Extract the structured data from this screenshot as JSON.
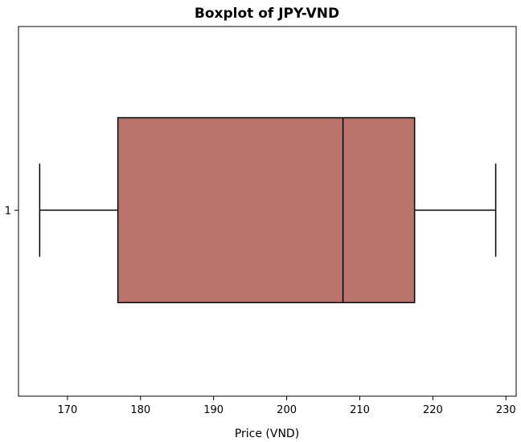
{
  "chart_data": {
    "type": "boxplot",
    "title": "Boxplot of JPY-VND",
    "xlabel": "Price (VND)",
    "ylabel": "",
    "orientation": "horizontal",
    "xlim": [
      163.3,
      231.4
    ],
    "x_ticks": [
      170,
      180,
      190,
      200,
      210,
      220,
      230
    ],
    "y_ticks": [
      1
    ],
    "grid": false,
    "legend": "none",
    "box_color": "#bb746c",
    "edge_color": "#000000",
    "series": [
      {
        "category": "1",
        "whisker_low": 166.2,
        "q1": 176.9,
        "median": 207.7,
        "q3": 217.5,
        "whisker_high": 228.6
      }
    ]
  }
}
